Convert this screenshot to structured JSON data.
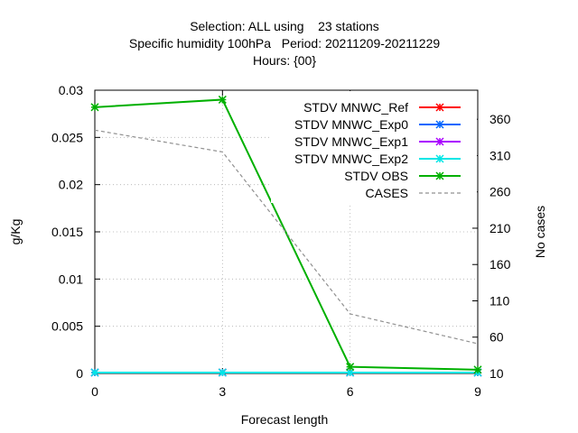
{
  "chart_data": {
    "type": "line",
    "title_lines": [
      "Selection: ALL using    23 stations",
      "Specific humidity 100hPa   Period: 20211209-20211229",
      "Hours: {00}"
    ],
    "xlabel": "Forecast length",
    "ylabel": "g/Kg",
    "y2label": "No cases",
    "x": [
      0,
      3,
      6,
      9
    ],
    "xlim": [
      0,
      9
    ],
    "ylim": [
      0,
      0.03
    ],
    "y2lim": [
      10,
      400
    ],
    "x_ticks": [
      "0",
      "3",
      "6",
      "9"
    ],
    "y_ticks": [
      "0",
      "0.005",
      "0.01",
      "0.015",
      "0.02",
      "0.025",
      "0.03"
    ],
    "y2_ticks": [
      "10",
      "60",
      "110",
      "160",
      "210",
      "260",
      "310",
      "360"
    ],
    "grid": true,
    "legend_position": "top-right",
    "series": [
      {
        "name": "STDV MNWC_Ref",
        "color": "#ff0000",
        "axis": "y",
        "marker": "x",
        "values": [
          0.0001,
          0.0001,
          0.0001,
          0.0001
        ]
      },
      {
        "name": "STDV MNWC_Exp0",
        "color": "#0066ff",
        "axis": "y",
        "marker": "x",
        "values": [
          0.0001,
          0.0001,
          0.0001,
          0.0001
        ]
      },
      {
        "name": "STDV MNWC_Exp1",
        "color": "#aa00ff",
        "axis": "y",
        "marker": "x",
        "values": [
          0.0001,
          0.0001,
          0.0001,
          0.0001
        ]
      },
      {
        "name": "STDV MNWC_Exp2",
        "color": "#00e6e6",
        "axis": "y",
        "marker": "x",
        "values": [
          0.0001,
          0.0001,
          0.0001,
          0.0001
        ]
      },
      {
        "name": "STDV OBS",
        "color": "#00b000",
        "axis": "y",
        "marker": "x",
        "values": [
          0.0282,
          0.029,
          0.0007,
          0.0004
        ]
      },
      {
        "name": "CASES",
        "color": "#909090",
        "axis": "y2",
        "marker": "none",
        "dashed": true,
        "values": [
          345,
          315,
          92,
          51
        ]
      }
    ]
  }
}
